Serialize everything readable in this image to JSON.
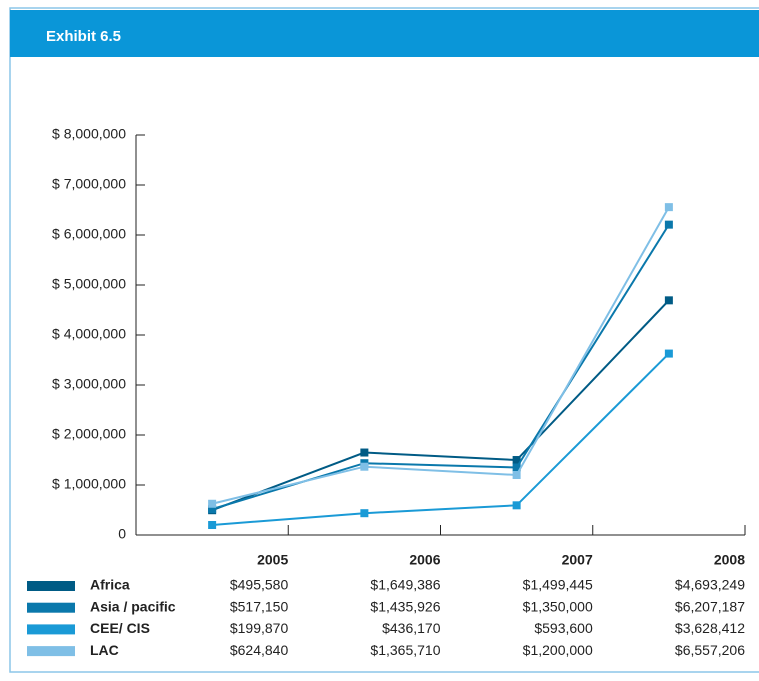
{
  "chart_data": {
    "type": "line",
    "title": "Exhibit 6.5",
    "categories": [
      "2005",
      "2006",
      "2007",
      "2008"
    ],
    "ylim": [
      0,
      8000000
    ],
    "yticks": [
      0,
      {
        "value": 1000000,
        "label": "$ 1,000,000"
      },
      {
        "value": 2000000,
        "label": "$ 2,000,000"
      },
      {
        "value": 3000000,
        "label": "$ 3,000,000"
      },
      {
        "value": 4000000,
        "label": "$ 4,000,000"
      },
      {
        "value": 5000000,
        "label": "$ 5,000,000"
      },
      {
        "value": 6000000,
        "label": "$ 6,000,000"
      },
      {
        "value": 7000000,
        "label": "$ 7,000,000"
      },
      {
        "value": 8000000,
        "label": "$ 8,000,000"
      }
    ],
    "series": [
      {
        "name": "Africa",
        "color": "#005b85",
        "values": [
          495580,
          1649386,
          1499445,
          4693249
        ],
        "value_labels": [
          "$495,580",
          "$1,649,386",
          "$1,499,445",
          "$4,693,249"
        ]
      },
      {
        "name": "Asia / pacific",
        "color": "#0a78ab",
        "values": [
          517150,
          1435926,
          1350000,
          6207187
        ],
        "value_labels": [
          "$517,150",
          "$1,435,926",
          "$1,350,000",
          "$6,207,187"
        ]
      },
      {
        "name": "CEE/ CIS",
        "color": "#1a9ad6",
        "values": [
          199870,
          436170,
          593600,
          3628412
        ],
        "value_labels": [
          "$199,870",
          "$436,170",
          "$593,600",
          "$3,628,412"
        ]
      },
      {
        "name": "LAC",
        "color": "#7fbfe6",
        "values": [
          624840,
          1365710,
          1200000,
          6557206
        ],
        "value_labels": [
          "$624,840",
          "$1,365,710",
          "$1,200,000",
          "$6,557,206"
        ]
      }
    ]
  }
}
